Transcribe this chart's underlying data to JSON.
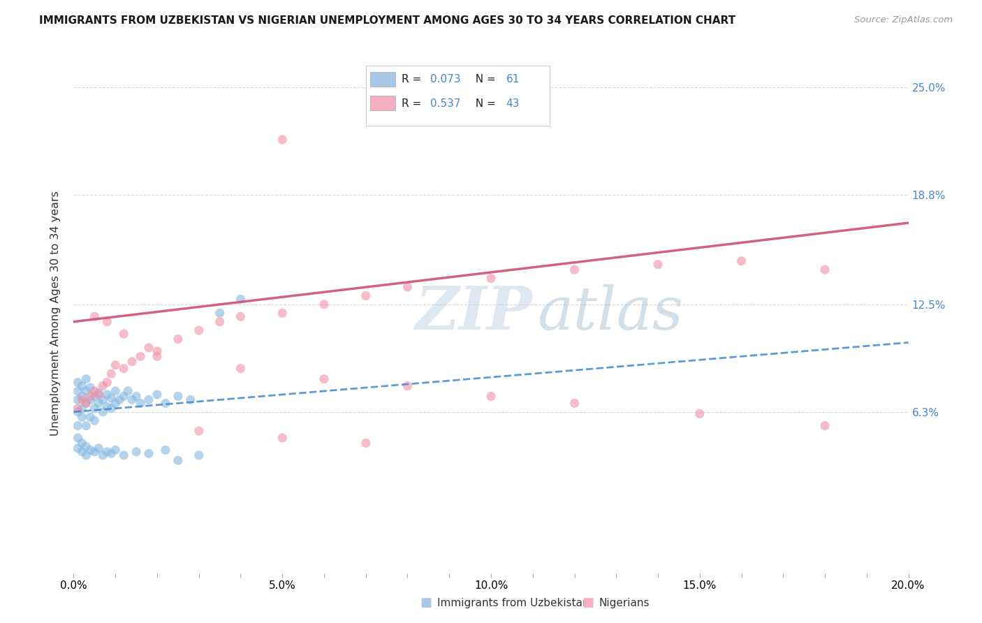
{
  "title": "IMMIGRANTS FROM UZBEKISTAN VS NIGERIAN UNEMPLOYMENT AMONG AGES 30 TO 34 YEARS CORRELATION CHART",
  "source": "Source: ZipAtlas.com",
  "ylabel": "Unemployment Among Ages 30 to 34 years",
  "xlim": [
    0.0,
    0.2
  ],
  "ylim": [
    -0.03,
    0.27
  ],
  "ytick_labels": [
    "6.3%",
    "12.5%",
    "18.8%",
    "25.0%"
  ],
  "ytick_values": [
    0.063,
    0.125,
    0.188,
    0.25
  ],
  "xtick_labels": [
    "0.0%",
    "",
    "",
    "",
    "",
    "5.0%",
    "",
    "",
    "",
    "",
    "10.0%",
    "",
    "",
    "",
    "",
    "15.0%",
    "",
    "",
    "",
    "",
    "20.0%"
  ],
  "xtick_values": [
    0.0,
    0.01,
    0.02,
    0.03,
    0.04,
    0.05,
    0.06,
    0.07,
    0.08,
    0.09,
    0.1,
    0.11,
    0.12,
    0.13,
    0.14,
    0.15,
    0.16,
    0.17,
    0.18,
    0.19,
    0.2
  ],
  "legend_label1": "Immigrants from Uzbekistan",
  "legend_label2": "Nigerians",
  "watermark_zip": "ZIP",
  "watermark_atlas": "atlas",
  "background_color": "#ffffff",
  "grid_color": "#cccccc",
  "blue_color": "#85b8e0",
  "pink_color": "#f090a8",
  "blue_line_color": "#4488cc",
  "pink_line_color": "#d05070",
  "right_tick_color": "#4488cc",
  "scatter_alpha": 0.6,
  "scatter_size": 90,
  "blue_legend_color": "#a8c8e8",
  "pink_legend_color": "#f4b0c0",
  "blue_line_start_y": 0.063,
  "blue_line_end_y": 0.103,
  "pink_line_start_y": 0.115,
  "pink_line_end_y": 0.172,
  "blue_scatter_x": [
    0.001,
    0.001,
    0.001,
    0.001,
    0.001,
    0.002,
    0.002,
    0.002,
    0.002,
    0.003,
    0.003,
    0.003,
    0.003,
    0.004,
    0.004,
    0.004,
    0.005,
    0.005,
    0.005,
    0.006,
    0.006,
    0.007,
    0.007,
    0.008,
    0.008,
    0.009,
    0.009,
    0.01,
    0.01,
    0.011,
    0.012,
    0.013,
    0.014,
    0.015,
    0.016,
    0.018,
    0.02,
    0.022,
    0.025,
    0.028,
    0.001,
    0.001,
    0.002,
    0.002,
    0.003,
    0.003,
    0.004,
    0.005,
    0.006,
    0.007,
    0.008,
    0.009,
    0.01,
    0.012,
    0.015,
    0.018,
    0.022,
    0.025,
    0.03,
    0.035,
    0.04
  ],
  "blue_scatter_y": [
    0.063,
    0.07,
    0.075,
    0.08,
    0.055,
    0.065,
    0.072,
    0.078,
    0.06,
    0.068,
    0.075,
    0.082,
    0.055,
    0.07,
    0.077,
    0.06,
    0.065,
    0.072,
    0.058,
    0.068,
    0.074,
    0.063,
    0.07,
    0.066,
    0.073,
    0.065,
    0.071,
    0.068,
    0.075,
    0.07,
    0.072,
    0.075,
    0.07,
    0.072,
    0.068,
    0.07,
    0.073,
    0.068,
    0.072,
    0.07,
    0.048,
    0.042,
    0.045,
    0.04,
    0.043,
    0.038,
    0.041,
    0.04,
    0.042,
    0.038,
    0.04,
    0.039,
    0.041,
    0.038,
    0.04,
    0.039,
    0.041,
    0.035,
    0.038,
    0.12,
    0.128
  ],
  "pink_scatter_x": [
    0.001,
    0.002,
    0.003,
    0.004,
    0.005,
    0.006,
    0.007,
    0.008,
    0.009,
    0.01,
    0.012,
    0.014,
    0.016,
    0.018,
    0.02,
    0.025,
    0.03,
    0.035,
    0.04,
    0.05,
    0.06,
    0.07,
    0.08,
    0.1,
    0.12,
    0.14,
    0.16,
    0.18,
    0.005,
    0.008,
    0.012,
    0.02,
    0.04,
    0.06,
    0.08,
    0.1,
    0.12,
    0.15,
    0.18,
    0.03,
    0.05,
    0.07,
    0.05
  ],
  "pink_scatter_y": [
    0.065,
    0.07,
    0.068,
    0.072,
    0.075,
    0.073,
    0.078,
    0.08,
    0.085,
    0.09,
    0.088,
    0.092,
    0.095,
    0.1,
    0.098,
    0.105,
    0.11,
    0.115,
    0.118,
    0.12,
    0.125,
    0.13,
    0.135,
    0.14,
    0.145,
    0.148,
    0.15,
    0.145,
    0.118,
    0.115,
    0.108,
    0.095,
    0.088,
    0.082,
    0.078,
    0.072,
    0.068,
    0.062,
    0.055,
    0.052,
    0.048,
    0.045,
    0.22
  ]
}
